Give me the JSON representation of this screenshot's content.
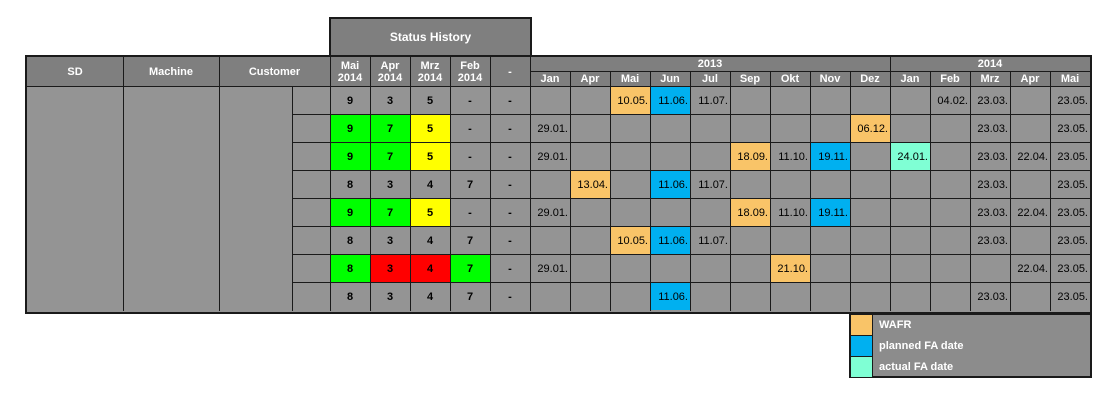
{
  "title": "Status History",
  "headers": {
    "sd": "SD",
    "machine": "Machine",
    "customer": "Customer",
    "status_months": [
      [
        "Mai",
        "2014"
      ],
      [
        "Apr",
        "2014"
      ],
      [
        "Mrz",
        "2014"
      ],
      [
        "Feb",
        "2014"
      ]
    ],
    "dash": "-",
    "year_2013": "2013",
    "year_2014": "2014",
    "months_2013": [
      "Jan",
      "Apr",
      "Mai",
      "Jun",
      "Jul",
      "Sep",
      "Okt",
      "Nov",
      "Dez"
    ],
    "months_2014": [
      "Jan",
      "Feb",
      "Mrz",
      "Apr",
      "Mai"
    ]
  },
  "colors": {
    "green": "#00ff00",
    "yellow": "#ffff00",
    "red": "#ff0000",
    "wafr": "#f9c468",
    "planned": "#00b0f0",
    "actual": "#7fffd4",
    "grey": "#949494"
  },
  "rows": [
    {
      "status": [
        {
          "v": "9",
          "c": ""
        },
        {
          "v": "3",
          "c": ""
        },
        {
          "v": "5",
          "c": ""
        },
        {
          "v": "-",
          "c": ""
        },
        {
          "v": "-",
          "c": ""
        }
      ],
      "dates": [
        {
          "v": "",
          "c": ""
        },
        {
          "v": "",
          "c": ""
        },
        {
          "v": "10.05.",
          "c": "wafr"
        },
        {
          "v": "11.06.",
          "c": "planned"
        },
        {
          "v": "11.07.",
          "c": ""
        },
        {
          "v": "",
          "c": ""
        },
        {
          "v": "",
          "c": ""
        },
        {
          "v": "",
          "c": ""
        },
        {
          "v": "",
          "c": ""
        },
        {
          "v": "",
          "c": ""
        },
        {
          "v": "04.02.",
          "c": ""
        },
        {
          "v": "23.03.",
          "c": ""
        },
        {
          "v": "",
          "c": ""
        },
        {
          "v": "23.05.",
          "c": ""
        }
      ]
    },
    {
      "status": [
        {
          "v": "9",
          "c": "green"
        },
        {
          "v": "7",
          "c": "green"
        },
        {
          "v": "5",
          "c": "yellow"
        },
        {
          "v": "-",
          "c": ""
        },
        {
          "v": "-",
          "c": ""
        }
      ],
      "dates": [
        {
          "v": "29.01.",
          "c": ""
        },
        {
          "v": "",
          "c": ""
        },
        {
          "v": "",
          "c": ""
        },
        {
          "v": "",
          "c": ""
        },
        {
          "v": "",
          "c": ""
        },
        {
          "v": "",
          "c": ""
        },
        {
          "v": "",
          "c": ""
        },
        {
          "v": "",
          "c": ""
        },
        {
          "v": "06.12.",
          "c": "wafr"
        },
        {
          "v": "",
          "c": ""
        },
        {
          "v": "",
          "c": ""
        },
        {
          "v": "23.03.",
          "c": ""
        },
        {
          "v": "",
          "c": ""
        },
        {
          "v": "23.05.",
          "c": ""
        }
      ]
    },
    {
      "status": [
        {
          "v": "9",
          "c": "green"
        },
        {
          "v": "7",
          "c": "green"
        },
        {
          "v": "5",
          "c": "yellow"
        },
        {
          "v": "-",
          "c": ""
        },
        {
          "v": "-",
          "c": ""
        }
      ],
      "dates": [
        {
          "v": "29.01.",
          "c": ""
        },
        {
          "v": "",
          "c": ""
        },
        {
          "v": "",
          "c": ""
        },
        {
          "v": "",
          "c": ""
        },
        {
          "v": "",
          "c": ""
        },
        {
          "v": "18.09.",
          "c": "wafr"
        },
        {
          "v": "11.10.",
          "c": ""
        },
        {
          "v": "19.11.",
          "c": "planned"
        },
        {
          "v": "",
          "c": ""
        },
        {
          "v": "24.01.",
          "c": "actual"
        },
        {
          "v": "",
          "c": ""
        },
        {
          "v": "23.03.",
          "c": ""
        },
        {
          "v": "22.04.",
          "c": ""
        },
        {
          "v": "23.05.",
          "c": ""
        }
      ]
    },
    {
      "status": [
        {
          "v": "8",
          "c": ""
        },
        {
          "v": "3",
          "c": ""
        },
        {
          "v": "4",
          "c": ""
        },
        {
          "v": "7",
          "c": ""
        },
        {
          "v": "-",
          "c": ""
        }
      ],
      "dates": [
        {
          "v": "",
          "c": ""
        },
        {
          "v": "13.04.",
          "c": "wafr"
        },
        {
          "v": "",
          "c": ""
        },
        {
          "v": "11.06.",
          "c": "planned"
        },
        {
          "v": "11.07.",
          "c": ""
        },
        {
          "v": "",
          "c": ""
        },
        {
          "v": "",
          "c": ""
        },
        {
          "v": "",
          "c": ""
        },
        {
          "v": "",
          "c": ""
        },
        {
          "v": "",
          "c": ""
        },
        {
          "v": "",
          "c": ""
        },
        {
          "v": "23.03.",
          "c": ""
        },
        {
          "v": "",
          "c": ""
        },
        {
          "v": "23.05.",
          "c": ""
        }
      ]
    },
    {
      "status": [
        {
          "v": "9",
          "c": "green"
        },
        {
          "v": "7",
          "c": "green"
        },
        {
          "v": "5",
          "c": "yellow"
        },
        {
          "v": "-",
          "c": ""
        },
        {
          "v": "-",
          "c": ""
        }
      ],
      "dates": [
        {
          "v": "29.01.",
          "c": ""
        },
        {
          "v": "",
          "c": ""
        },
        {
          "v": "",
          "c": ""
        },
        {
          "v": "",
          "c": ""
        },
        {
          "v": "",
          "c": ""
        },
        {
          "v": "18.09.",
          "c": "wafr"
        },
        {
          "v": "11.10.",
          "c": ""
        },
        {
          "v": "19.11.",
          "c": "planned"
        },
        {
          "v": "",
          "c": ""
        },
        {
          "v": "",
          "c": ""
        },
        {
          "v": "",
          "c": ""
        },
        {
          "v": "23.03.",
          "c": ""
        },
        {
          "v": "22.04.",
          "c": ""
        },
        {
          "v": "23.05.",
          "c": ""
        }
      ]
    },
    {
      "status": [
        {
          "v": "8",
          "c": ""
        },
        {
          "v": "3",
          "c": ""
        },
        {
          "v": "4",
          "c": ""
        },
        {
          "v": "7",
          "c": ""
        },
        {
          "v": "-",
          "c": ""
        }
      ],
      "dates": [
        {
          "v": "",
          "c": ""
        },
        {
          "v": "",
          "c": ""
        },
        {
          "v": "10.05.",
          "c": "wafr"
        },
        {
          "v": "11.06.",
          "c": "planned"
        },
        {
          "v": "11.07.",
          "c": ""
        },
        {
          "v": "",
          "c": ""
        },
        {
          "v": "",
          "c": ""
        },
        {
          "v": "",
          "c": ""
        },
        {
          "v": "",
          "c": ""
        },
        {
          "v": "",
          "c": ""
        },
        {
          "v": "",
          "c": ""
        },
        {
          "v": "23.03.",
          "c": ""
        },
        {
          "v": "",
          "c": ""
        },
        {
          "v": "23.05.",
          "c": ""
        }
      ]
    },
    {
      "status": [
        {
          "v": "8",
          "c": "green"
        },
        {
          "v": "3",
          "c": "red"
        },
        {
          "v": "4",
          "c": "red"
        },
        {
          "v": "7",
          "c": "green"
        },
        {
          "v": "-",
          "c": ""
        }
      ],
      "dates": [
        {
          "v": "29.01.",
          "c": ""
        },
        {
          "v": "",
          "c": ""
        },
        {
          "v": "",
          "c": ""
        },
        {
          "v": "",
          "c": ""
        },
        {
          "v": "",
          "c": ""
        },
        {
          "v": "",
          "c": ""
        },
        {
          "v": "21.10.",
          "c": "wafr"
        },
        {
          "v": "",
          "c": ""
        },
        {
          "v": "",
          "c": ""
        },
        {
          "v": "",
          "c": ""
        },
        {
          "v": "",
          "c": ""
        },
        {
          "v": "",
          "c": ""
        },
        {
          "v": "22.04.",
          "c": ""
        },
        {
          "v": "23.05.",
          "c": ""
        }
      ]
    },
    {
      "status": [
        {
          "v": "8",
          "c": ""
        },
        {
          "v": "3",
          "c": ""
        },
        {
          "v": "4",
          "c": ""
        },
        {
          "v": "7",
          "c": ""
        },
        {
          "v": "-",
          "c": ""
        }
      ],
      "dates": [
        {
          "v": "",
          "c": ""
        },
        {
          "v": "",
          "c": ""
        },
        {
          "v": "",
          "c": ""
        },
        {
          "v": "11.06.",
          "c": "planned"
        },
        {
          "v": "",
          "c": ""
        },
        {
          "v": "",
          "c": ""
        },
        {
          "v": "",
          "c": ""
        },
        {
          "v": "",
          "c": ""
        },
        {
          "v": "",
          "c": ""
        },
        {
          "v": "",
          "c": ""
        },
        {
          "v": "",
          "c": ""
        },
        {
          "v": "23.03.",
          "c": ""
        },
        {
          "v": "",
          "c": ""
        },
        {
          "v": "23.05.",
          "c": ""
        }
      ]
    }
  ],
  "legend": [
    {
      "label": "WAFR",
      "color": "wafr"
    },
    {
      "label": "planned FA date",
      "color": "planned"
    },
    {
      "label": "actual FA date",
      "color": "actual"
    }
  ]
}
